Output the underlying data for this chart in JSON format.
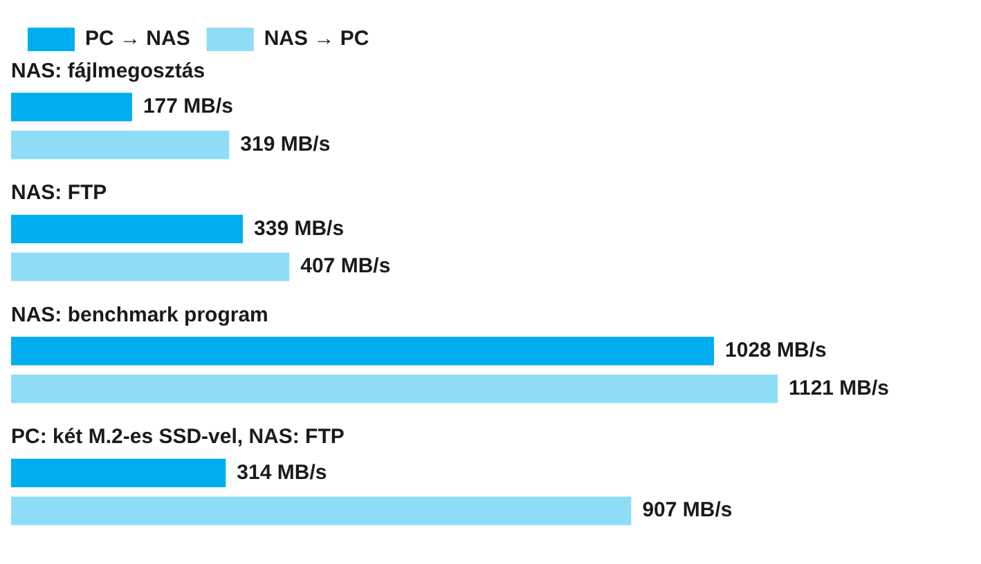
{
  "chart_data": {
    "type": "bar",
    "orientation": "horizontal",
    "categories": [
      "NAS: fájlmegosztás",
      "NAS: FTP",
      "NAS: benchmark program",
      "PC: két M.2-es SSD-vel, NAS: FTP"
    ],
    "series": [
      {
        "name": "PC → NAS",
        "color": "#00aeef",
        "values": [
          177,
          339,
          1028,
          314
        ],
        "value_labels": [
          "177 MB/s",
          "339 MB/s",
          "1028 MB/s",
          "314 MB/s"
        ]
      },
      {
        "name": "NAS → PC",
        "color": "#8fdcf7",
        "values": [
          319,
          407,
          1121,
          907
        ],
        "value_labels": [
          "319 MB/s",
          "407 MB/s",
          "1121 MB/s",
          "907 MB/s"
        ]
      }
    ],
    "legend": "top left",
    "tick_labels": false,
    "grid": false
  }
}
